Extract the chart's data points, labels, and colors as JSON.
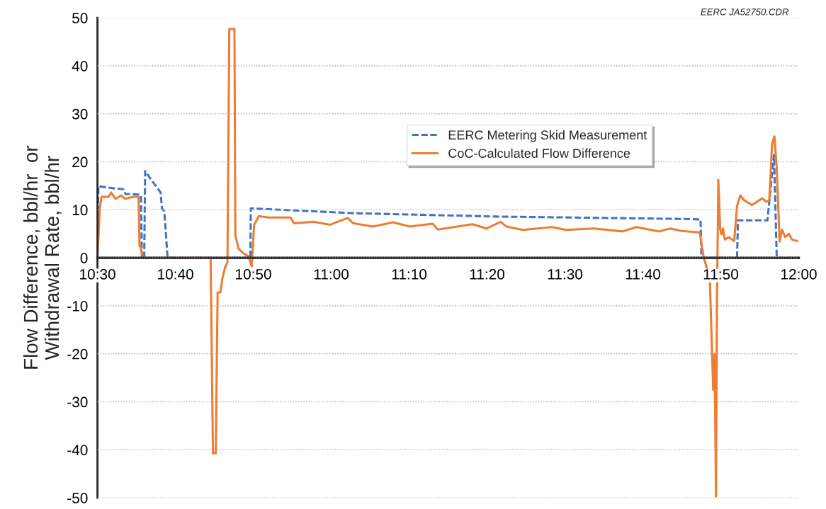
{
  "chart_data": {
    "type": "line",
    "ylabel": "Flow Difference, bbl/hr  or\nWithdrawal Rate, bbl/hr",
    "annotations": [
      "EERC JA52750.CDR"
    ],
    "xlim": [
      10.5,
      12.0
    ],
    "xticks": [
      {
        "value": 10.5,
        "label": "10:30"
      },
      {
        "value": 10.6667,
        "label": "10:40"
      },
      {
        "value": 10.8333,
        "label": "10:50"
      },
      {
        "value": 11.0,
        "label": "11:00"
      },
      {
        "value": 11.1667,
        "label": "11:10"
      },
      {
        "value": 11.3333,
        "label": "11:20"
      },
      {
        "value": 11.5,
        "label": "11:30"
      },
      {
        "value": 11.6667,
        "label": "11:40"
      },
      {
        "value": 11.8333,
        "label": "11:50"
      },
      {
        "value": 12.0,
        "label": "12:00"
      }
    ],
    "ylim": [
      -50,
      50
    ],
    "yticks": [
      -50,
      -40,
      -30,
      -20,
      -10,
      0,
      10,
      20,
      30,
      40,
      50
    ],
    "grid": "y",
    "legend": "top right",
    "series": [
      {
        "name": "EERC Metering Skid Measurement",
        "color": "#4472c4",
        "line_style": "dashed",
        "x": [
          10.5,
          10.502,
          10.533,
          10.555,
          10.56,
          10.587,
          10.593,
          10.595,
          10.6,
          10.602,
          10.612,
          10.635,
          10.638,
          10.643,
          10.65,
          10.827,
          10.828,
          11.047,
          11.35,
          11.75,
          11.79,
          11.792,
          11.868,
          11.87,
          11.933,
          11.947,
          11.953,
          12.0
        ],
        "values": [
          0,
          14.9,
          14.5,
          14.3,
          13.3,
          13.2,
          13.0,
          0,
          0,
          18.1,
          16.7,
          13.6,
          10.3,
          9.7,
          0,
          0,
          10.3,
          9.3,
          8.6,
          8.1,
          8.0,
          0,
          0,
          7.8,
          7.8,
          21.4,
          0,
          0
        ]
      },
      {
        "name": "CoC-Calculated Flow Difference",
        "color": "#ed7d31",
        "line_style": "solid",
        "x": [
          10.5,
          10.505,
          10.509,
          10.524,
          10.529,
          10.539,
          10.55,
          10.559,
          10.577,
          10.588,
          10.59,
          10.592,
          10.597,
          10.742,
          10.747,
          10.753,
          10.757,
          10.763,
          10.767,
          10.773,
          10.778,
          10.782,
          10.793,
          10.795,
          10.802,
          10.813,
          10.823,
          10.83,
          10.835,
          10.845,
          10.865,
          10.913,
          10.92,
          10.962,
          10.998,
          11.035,
          11.047,
          11.09,
          11.132,
          11.168,
          11.217,
          11.228,
          11.302,
          11.332,
          11.362,
          11.375,
          11.41,
          11.472,
          11.502,
          11.562,
          11.623,
          11.653,
          11.702,
          11.725,
          11.75,
          11.788,
          11.797,
          11.803,
          11.81,
          11.817,
          11.82,
          11.823,
          11.825,
          11.828,
          11.832,
          11.835,
          11.838,
          11.842,
          11.85,
          11.862,
          11.868,
          11.875,
          11.883,
          11.9,
          11.922,
          11.93,
          11.937,
          11.943,
          11.948,
          11.953,
          11.959,
          11.964,
          11.971,
          11.979,
          11.986,
          11.997
        ],
        "values": [
          0,
          10.5,
          12.7,
          12.7,
          13.6,
          12.3,
          13.0,
          12.3,
          12.7,
          12.7,
          2.4,
          2.4,
          0,
          0,
          -40.7,
          -40.7,
          -7.2,
          -7.2,
          -4.4,
          -2,
          -1,
          47.7,
          47.7,
          4.6,
          1.9,
          0.9,
          0.3,
          -1.8,
          6.8,
          8.7,
          8.4,
          8.4,
          7.2,
          7.5,
          6.9,
          8.3,
          7.2,
          6.5,
          7.4,
          6.5,
          7.1,
          5.9,
          7.0,
          6.1,
          7.5,
          6.5,
          5.8,
          6.4,
          5.8,
          6.1,
          5.5,
          6.4,
          5.5,
          6.1,
          5.6,
          5.3,
          0,
          -2,
          -5,
          -27.5,
          -20,
          -49.8,
          -10,
          16.2,
          5.9,
          4.9,
          6.1,
          3.8,
          4.3,
          3.5,
          10.8,
          13.0,
          12.0,
          11.0,
          12.4,
          11.7,
          11.9,
          23.7,
          25.3,
          18.6,
          3.4,
          5.9,
          4.3,
          5.0,
          3.8,
          3.5
        ]
      }
    ]
  }
}
